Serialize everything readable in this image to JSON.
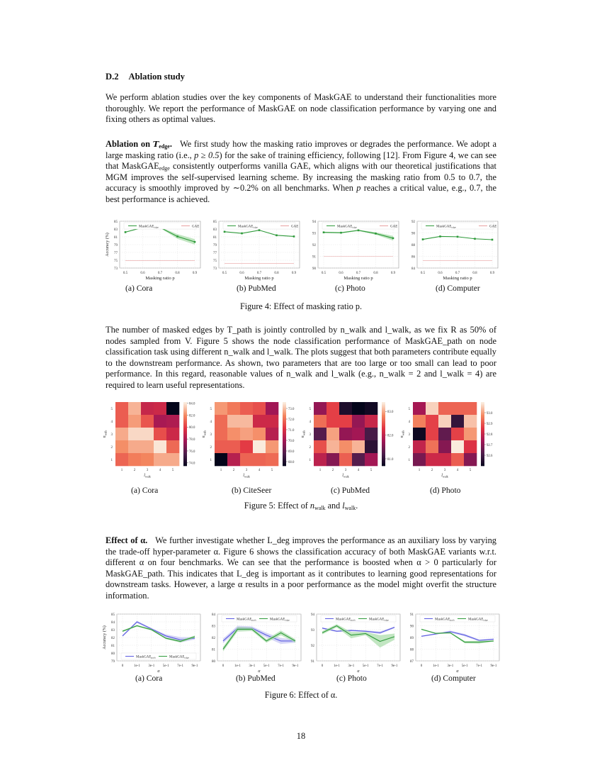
{
  "section": {
    "number": "D.2",
    "title": "Ablation study"
  },
  "intro_paragraph": "We perform ablation studies over the key components of MaskGAE to understand their functionalities more thoroughly. We report the performance of MaskGAE on node classification performance by varying one and fixing others as optimal values.",
  "ablation_edge": {
    "heading": "Ablation on",
    "heading_symbol": "T",
    "heading_sub": "edge",
    "text_1": "We first study how the masking ratio improves or degrades the performance. We adopt a large masking ratio (i.e., ",
    "math_1": "p ≥ 0.5",
    "text_2": ") for the sake of training efficiency, following [12]. From Figure 4, we can see that MaskGAE",
    "sub_1": "edge",
    "text_3": " consistently outperforms vanilla GAE, which aligns with our theoretical justifications that MGM improves the self-supervised learning scheme. By increasing the masking ratio from 0.5 to 0.7, the accuracy is smoothly improved by ∼0.2% on all benchmarks. When ",
    "math_2": "p",
    "text_4": " reaches a critical value, e.g., 0.7, the best performance is achieved."
  },
  "figure4": {
    "caption": "Figure 4: Effect of masking ratio p.",
    "subcaptions": [
      "(a) Cora",
      "(b) PubMed",
      "(c) Photo",
      "(d) Computer"
    ]
  },
  "ablation_path": {
    "heading": "Ablation on",
    "heading_symbol": "T",
    "heading_sub": "path",
    "text": "The number of masked edges by T_path is jointly controlled by n_walk and l_walk, as we fix R as 50% of nodes sampled from V. Figure 5 shows the node classification performance of MaskGAE_path on node classification task using different n_walk and l_walk. The plots suggest that both parameters contribute equally to the downstream performance. As shown, two parameters that are too large or too small can lead to poor performance. In this regard, reasonable values of n_walk and l_walk (e.g., n_walk = 2 and l_walk = 4) are required to learn useful representations."
  },
  "figure5": {
    "caption_prefix": "Figure 5: Effect of ",
    "caption_n": "n",
    "caption_and": " and ",
    "caption_l": "l",
    "caption_sub": "walk",
    "subcaptions": [
      "(a) Cora",
      "(b) CiteSeer",
      "(c) PubMed",
      "(d) Photo"
    ]
  },
  "effect_alpha": {
    "heading": "Effect of α.",
    "text": "We further investigate whether L_deg improves the performance as an auxiliary loss by varying the trade-off hyper-parameter α. Figure 6 shows the classification accuracy of both MaskGAE variants w.r.t. different α on four benchmarks. We can see that the performance is boosted when α > 0 particularly for MaskGAE_path. This indicates that L_deg is important as it contributes to learning good representations for downstream tasks. However, a large α results in a poor performance as the model might overfit the structure information."
  },
  "figure6": {
    "caption": "Figure 6: Effect of α.",
    "subcaptions": [
      "(a) Cora",
      "(b) PubMed",
      "(c) Photo",
      "(d) Computer"
    ]
  },
  "page_number": "18",
  "colors": {
    "edge_green": "#2e9a3a",
    "edge_band": "#a8dba8",
    "gae_red": "#e8a0a0",
    "path_blue": "#5a5ae0",
    "path_band": "#c4c4f4",
    "grid": "#e6e6e6"
  },
  "chart_data": [
    {
      "type": "line",
      "title": "(a) Cora",
      "figure": 4,
      "xlabel": "Masking ratio p",
      "ylabel": "Accuracy (%)",
      "x": [
        0.5,
        0.6,
        0.7,
        0.8,
        0.9
      ],
      "ylim": [
        73,
        85
      ],
      "yticks": [
        73,
        75,
        77,
        79,
        81,
        83,
        85
      ],
      "series": [
        {
          "name": "MaskGAE_edge",
          "values": [
            82.2,
            83.4,
            83.4,
            81.1,
            79.7
          ],
          "band": [
            0.1,
            0.1,
            0.1,
            0.6,
            0.7
          ]
        },
        {
          "name": "GAE",
          "values": [
            74.9,
            74.9,
            74.9,
            74.9,
            74.9
          ]
        }
      ]
    },
    {
      "type": "line",
      "title": "(b) PubMed",
      "figure": 4,
      "xlabel": "Masking ratio p",
      "ylabel": "",
      "x": [
        0.5,
        0.6,
        0.7,
        0.8,
        0.9
      ],
      "ylim": [
        73,
        85
      ],
      "yticks": [
        73,
        75,
        77,
        79,
        81,
        83,
        85
      ],
      "series": [
        {
          "name": "MaskGAE_edge",
          "values": [
            82.3,
            81.9,
            82.7,
            81.4,
            81.1
          ]
        },
        {
          "name": "GAE",
          "values": [
            74.2,
            74.2,
            74.2,
            74.2,
            74.2
          ]
        }
      ]
    },
    {
      "type": "line",
      "title": "(c) Photo",
      "figure": 4,
      "xlabel": "Masking ratio p",
      "ylabel": "",
      "x": [
        0.5,
        0.6,
        0.7,
        0.8,
        0.9
      ],
      "ylim": [
        90,
        94
      ],
      "yticks": [
        90,
        91,
        92,
        93,
        94
      ],
      "series": [
        {
          "name": "MaskGAE_edge",
          "values": [
            93.05,
            93.02,
            93.22,
            92.95,
            92.55
          ],
          "band": [
            0.05,
            0.05,
            0.05,
            0.1,
            0.2
          ]
        },
        {
          "name": "GAE",
          "values": [
            91.0,
            91.0,
            91.0,
            91.0,
            91.0
          ]
        }
      ]
    },
    {
      "type": "line",
      "title": "(d) Computer",
      "figure": 4,
      "xlabel": "Masking ratio p",
      "ylabel": "",
      "x": [
        0.5,
        0.6,
        0.7,
        0.8,
        0.9
      ],
      "ylim": [
        84,
        92
      ],
      "yticks": [
        84,
        86,
        88,
        90,
        92
      ],
      "series": [
        {
          "name": "MaskGAE_edge",
          "values": [
            88.9,
            89.4,
            89.35,
            89.0,
            88.85
          ]
        },
        {
          "name": "GAE",
          "values": [
            85.3,
            85.3,
            85.3,
            85.3,
            85.3
          ]
        }
      ]
    },
    {
      "type": "heatmap",
      "title": "(a) Cora",
      "figure": 5,
      "xlabel": "l_walk",
      "ylabel": "n_walk",
      "x": [
        1,
        2,
        3,
        4,
        5
      ],
      "y": [
        5,
        4,
        3,
        2,
        1
      ],
      "colorbar_ticks": [
        74.0,
        76.0,
        78.0,
        80.0,
        82.0,
        84.0
      ],
      "vrange": [
        73.5,
        84.2
      ],
      "values": [
        [
          81.0,
          83.0,
          79.0,
          79.2,
          73.5
        ],
        [
          81.0,
          82.5,
          80.8,
          78.0,
          78.2
        ],
        [
          82.8,
          83.8,
          83.8,
          80.6,
          79.2
        ],
        [
          82.2,
          82.8,
          82.8,
          84.1,
          81.3
        ],
        [
          81.2,
          81.8,
          82.0,
          82.8,
          82.8
        ]
      ]
    },
    {
      "type": "heatmap",
      "title": "(b) CiteSeer",
      "figure": 5,
      "xlabel": "l_walk",
      "ylabel": "n_walk",
      "x": [
        1,
        2,
        3,
        4,
        5
      ],
      "y": [
        5,
        4,
        3,
        2,
        1
      ],
      "colorbar_ticks": [
        68.0,
        69.0,
        70.0,
        71.0,
        72.0,
        73.0
      ],
      "vrange": [
        67.6,
        73.6
      ],
      "values": [
        [
          72.6,
          72.2,
          71.8,
          71.6,
          70.0
        ],
        [
          72.0,
          73.0,
          73.0,
          70.8,
          70.8
        ],
        [
          72.0,
          72.5,
          72.7,
          72.5,
          70.4
        ],
        [
          71.8,
          71.8,
          71.3,
          73.6,
          72.6
        ],
        [
          67.6,
          70.4,
          71.9,
          71.9,
          72.0
        ]
      ]
    },
    {
      "type": "heatmap",
      "title": "(c) PubMed",
      "figure": 5,
      "xlabel": "l_walk",
      "ylabel": "n_walk",
      "x": [
        1,
        2,
        3,
        4,
        5
      ],
      "y": [
        5,
        4,
        3,
        2,
        1
      ],
      "colorbar_ticks": [
        81.0,
        82.0,
        83.0
      ],
      "vrange": [
        80.7,
        83.4
      ],
      "values": [
        [
          81.7,
          82.4,
          80.9,
          80.7,
          80.8
        ],
        [
          82.7,
          82.4,
          82.4,
          81.7,
          82.1
        ],
        [
          81.3,
          83.0,
          81.7,
          81.8,
          81.2
        ],
        [
          82.5,
          83.1,
          82.9,
          83.1,
          81.0
        ],
        [
          82.0,
          81.6,
          82.6,
          81.3,
          81.8
        ]
      ]
    },
    {
      "type": "heatmap",
      "title": "(d) Photo",
      "figure": 5,
      "xlabel": "l_walk",
      "ylabel": "n_walk",
      "x": [
        1,
        2,
        3,
        4,
        5
      ],
      "y": [
        5,
        4,
        3,
        2,
        1
      ],
      "colorbar_ticks": [
        92.6,
        92.7,
        92.8,
        92.9,
        93.0
      ],
      "vrange": [
        92.5,
        93.1
      ],
      "values": [
        [
          92.75,
          93.07,
          92.93,
          92.93,
          92.93
        ],
        [
          92.97,
          92.88,
          93.07,
          92.58,
          93.05
        ],
        [
          92.52,
          92.88,
          92.65,
          92.88,
          93.0
        ],
        [
          92.8,
          92.95,
          92.7,
          93.1,
          92.85
        ],
        [
          92.68,
          92.82,
          92.82,
          92.92,
          92.7
        ]
      ]
    },
    {
      "type": "line",
      "title": "(a) Cora",
      "figure": 6,
      "xlabel": "α",
      "ylabel": "Accuracy (%)",
      "categories": [
        "0",
        "1e-1",
        "3e-1",
        "5e-1",
        "7e-1",
        "9e-1"
      ],
      "ylim": [
        79,
        85
      ],
      "yticks": [
        79,
        80,
        81,
        82,
        83,
        84,
        85
      ],
      "series": [
        {
          "name": "MaskGAE_path",
          "values": [
            82.2,
            84.0,
            83.1,
            82.2,
            81.7,
            81.9
          ],
          "band": [
            0.1,
            0.15,
            0.1,
            0.2,
            0.35,
            0.15
          ]
        },
        {
          "name": "MaskGAE_edge",
          "values": [
            82.8,
            83.5,
            83.0,
            81.9,
            81.5,
            82.1
          ],
          "band": [
            0.1,
            0.1,
            0.1,
            0.1,
            0.15,
            0.15
          ]
        }
      ],
      "legend_position": "lower"
    },
    {
      "type": "line",
      "title": "(b) PubMed",
      "figure": 6,
      "xlabel": "α",
      "ylabel": "",
      "categories": [
        "0",
        "1e-1",
        "3e-1",
        "5e-1",
        "7e-1",
        "9e-1"
      ],
      "ylim": [
        80,
        84
      ],
      "yticks": [
        80,
        81,
        82,
        83,
        84
      ],
      "series": [
        {
          "name": "MaskGAE_path",
          "values": [
            81.7,
            82.8,
            82.8,
            82.2,
            81.7,
            81.7
          ],
          "band": [
            0.2,
            0.2,
            0.15,
            0.2,
            0.25,
            0.15
          ]
        },
        {
          "name": "MaskGAE_edge",
          "values": [
            81.0,
            82.7,
            82.7,
            81.7,
            82.4,
            81.7
          ],
          "band": [
            0.2,
            0.2,
            0.15,
            0.15,
            0.2,
            0.15
          ]
        }
      ],
      "legend_position": "upper"
    },
    {
      "type": "line",
      "title": "(c) Photo",
      "figure": 6,
      "xlabel": "α",
      "ylabel": "",
      "categories": [
        "0",
        "1e-1",
        "3e-1",
        "5e-1",
        "7e-1",
        "9e-1"
      ],
      "ylim": [
        91,
        94
      ],
      "yticks": [
        91,
        92,
        93,
        94
      ],
      "series": [
        {
          "name": "MaskGAE_path",
          "values": [
            93.1,
            92.9,
            92.95,
            92.9,
            92.8,
            93.15
          ],
          "band": [
            0.05,
            0.05,
            0.05,
            0.05,
            0.08,
            0.05
          ]
        },
        {
          "name": "MaskGAE_edge",
          "values": [
            92.8,
            93.25,
            92.65,
            92.75,
            92.25,
            92.55
          ],
          "band": [
            0.1,
            0.1,
            0.2,
            0.1,
            0.4,
            0.2
          ]
        }
      ],
      "legend_position": "upper"
    },
    {
      "type": "line",
      "title": "(d) Computer",
      "figure": 6,
      "xlabel": "α",
      "ylabel": "",
      "categories": [
        "0",
        "1e-1",
        "3e-1",
        "5e-1",
        "7e-1",
        "9e-1"
      ],
      "ylim": [
        87,
        91
      ],
      "yticks": [
        87,
        88,
        89,
        90,
        91
      ],
      "series": [
        {
          "name": "MaskGAE_path",
          "values": [
            89.1,
            89.3,
            89.5,
            89.2,
            88.75,
            88.85
          ],
          "band": [
            0.05,
            0.05,
            0.08,
            0.1,
            0.08,
            0.05
          ]
        },
        {
          "name": "MaskGAE_edge",
          "values": [
            89.7,
            89.35,
            89.4,
            88.6,
            88.6,
            88.7
          ],
          "band": [
            0.05,
            0.05,
            0.05,
            0.1,
            0.12,
            0.05
          ]
        }
      ],
      "legend_position": "upper"
    }
  ]
}
